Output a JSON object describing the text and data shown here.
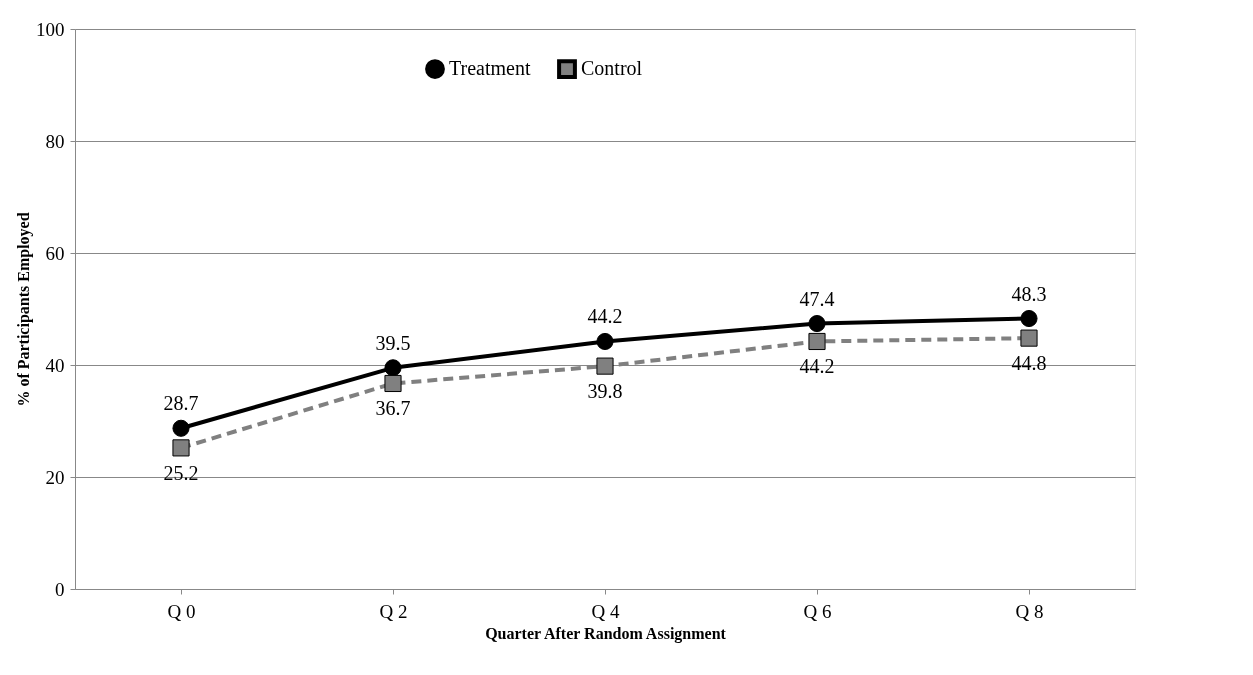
{
  "chart_data": {
    "type": "line",
    "xlabel": "Quarter After Random Assignment",
    "ylabel": "% of Participants Employed",
    "categories": [
      "Q 0",
      "Q 2",
      "Q 4",
      "Q 6",
      "Q 8"
    ],
    "series": [
      {
        "name": "Treatment",
        "color": "#000000",
        "values": [
          28.7,
          39.5,
          44.2,
          47.4,
          48.3
        ],
        "marker": "circle",
        "line_style": "solid"
      },
      {
        "name": "Control",
        "color": "#808080",
        "values": [
          25.2,
          36.7,
          39.8,
          44.2,
          44.8
        ],
        "marker": "square",
        "line_style": "dashed"
      }
    ],
    "ylim": [
      0,
      100
    ],
    "yticks": [
      0,
      20,
      40,
      60,
      80,
      100
    ],
    "grid": "y",
    "legend": "top",
    "data_labels": true
  }
}
